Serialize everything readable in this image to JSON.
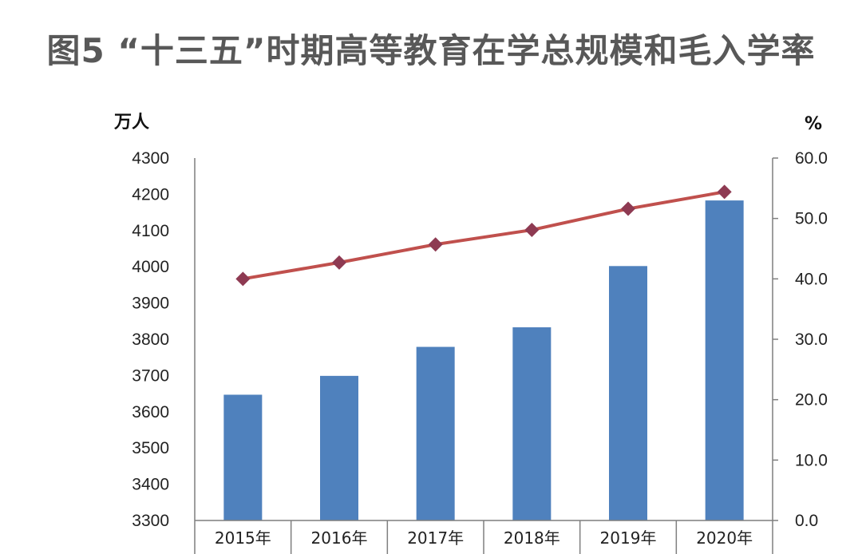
{
  "title": "图5 “十三五”时期高等教育在学总规模和毛入学率",
  "chart_data": {
    "type": "bar",
    "categories": [
      "2015年",
      "2016年",
      "2017年",
      "2018年",
      "2019年",
      "2020年"
    ],
    "series": [
      {
        "axis": "left",
        "type": "bar",
        "values": [
          3647,
          3699,
          3779,
          3833,
          4002,
          4183
        ],
        "color": "#4f81bd"
      },
      {
        "axis": "right",
        "type": "line",
        "values": [
          40.0,
          42.7,
          45.7,
          48.1,
          51.6,
          54.4
        ],
        "color": "#c0504d",
        "marker_color": "#8e3a52"
      }
    ],
    "y_left": {
      "unit": "万人",
      "ylim": [
        3300,
        4300
      ],
      "ticks": [
        "4300",
        "4200",
        "4100",
        "4000",
        "3900",
        "3800",
        "3700",
        "3600",
        "3500",
        "3400",
        "3300"
      ]
    },
    "y_right": {
      "unit": "%",
      "ylim": [
        0,
        60
      ],
      "ticks": [
        "60.0",
        "50.0",
        "40.0",
        "30.0",
        "20.0",
        "10.0",
        "0.0"
      ]
    },
    "grid": false,
    "legend": "none"
  }
}
